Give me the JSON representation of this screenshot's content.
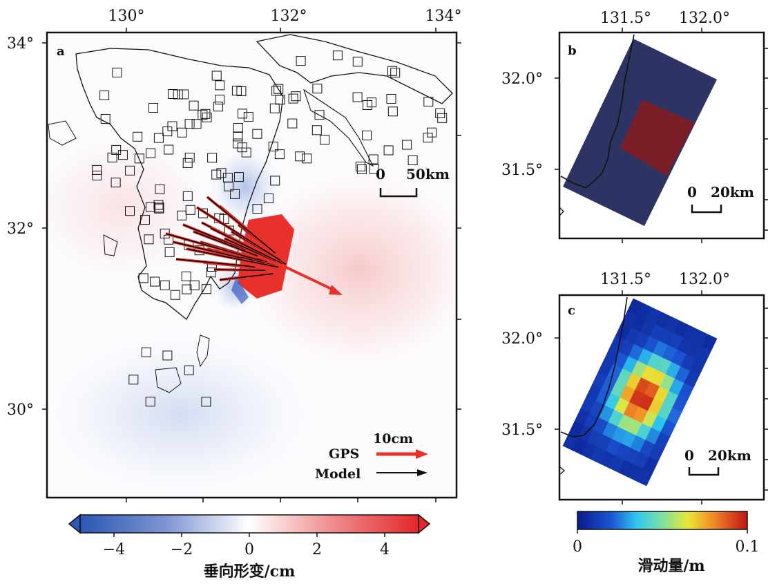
{
  "panels": {
    "a": {
      "label": "a",
      "lon_ticks": [
        "130°",
        "132°",
        "134°"
      ],
      "lat_ticks": [
        "34°",
        "32°",
        "30°"
      ],
      "scale_bar": {
        "start": "0",
        "end": "50km"
      },
      "legend": {
        "amount": "10cm",
        "gps_label": "GPS",
        "model_label": "Model",
        "gps_color": "#e8312b",
        "model_color": "#000000"
      },
      "colorbar": {
        "ticks": [
          "−4",
          "−2",
          "0",
          "2",
          "4"
        ],
        "label": "垂向形变/cm",
        "min": -5,
        "max": 5,
        "colors": [
          "#2a58b4",
          "#ffffff",
          "#e3272b"
        ]
      }
    },
    "b": {
      "label": "b",
      "lon_ticks": [
        "131.5°",
        "132.0°"
      ],
      "lat_ticks": [
        "32.0°",
        "31.5°"
      ],
      "scale_bar": {
        "start": "0",
        "end": "20km"
      },
      "fault_color": "#2d3463",
      "patch_color": "#7a1f27"
    },
    "c": {
      "label": "c",
      "lon_ticks": [
        "131.5°",
        "132.0°"
      ],
      "lat_ticks": [
        "32.0°",
        "31.5°"
      ],
      "scale_bar": {
        "start": "0",
        "end": "20km"
      },
      "colorbar": {
        "ticks": [
          "0",
          "0.1"
        ],
        "label": "滑动量/m",
        "min": 0,
        "max": 0.1,
        "colormap": "jet"
      }
    }
  }
}
